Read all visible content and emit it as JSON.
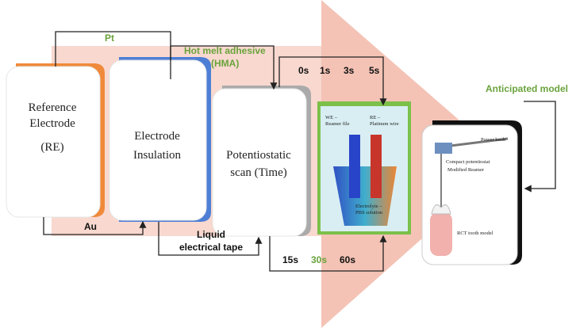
{
  "connectors": {
    "pt": "Pt",
    "hma": [
      "Hot melt adhesive",
      "(HMA)"
    ],
    "times_top": [
      "0s",
      "1s",
      "3s",
      "5s"
    ],
    "au": "Au",
    "tape": [
      "Liquid",
      "electrical tape"
    ],
    "times_bottom": [
      "15s",
      "30s",
      "60s"
    ],
    "anticipated": "Anticipated model"
  },
  "boxes": [
    {
      "lines": [
        "Reference",
        "Electrode",
        "(RE)"
      ]
    },
    {
      "lines": [
        "Electrode",
        "Insulation"
      ]
    },
    {
      "lines": [
        "Potentiostatic",
        "scan (Time)"
      ]
    },
    {
      "labels": [
        "WE –",
        "Reamer file",
        "RE –",
        "Platinum wire",
        "Electrolyte –",
        "PBS solution"
      ]
    },
    {
      "labels": [
        "Power knob",
        "Compact potentiostat",
        "Modified Reamer",
        "RCT tooth model"
      ]
    }
  ]
}
